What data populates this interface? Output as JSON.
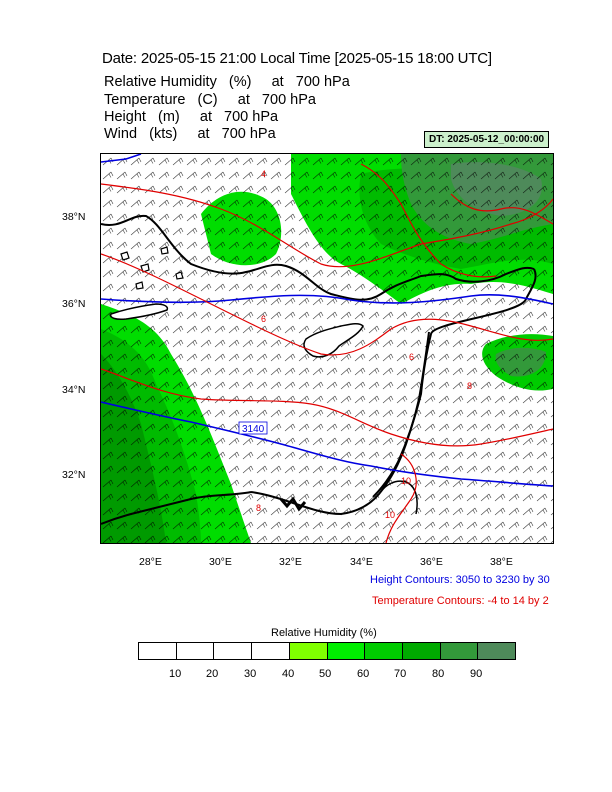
{
  "title": "Date: 2025-05-15  21:00 Local Time [2025-05-15  18:00 UTC]",
  "variables": [
    "Relative Humidity   (%)     at   700 hPa",
    "Temperature   (C)     at   700 hPa",
    "Height   (m)     at   700 hPa",
    "Wind   (kts)     at   700 hPa"
  ],
  "dt_label": "DT: 2025-05-12_00:00:00",
  "map": {
    "lon_range": [
      26.6,
      39.4
    ],
    "lat_range": [
      30.4,
      39.5
    ],
    "lon_ticks": [
      "28°E",
      "30°E",
      "32°E",
      "34°E",
      "36°E",
      "38°E"
    ],
    "lat_ticks": [
      "38°N",
      "36°N",
      "34°N",
      "32°N"
    ],
    "height_contour_labels": [
      "3140"
    ],
    "temperature_contour_labels": [
      "4",
      "6",
      "6",
      "8",
      "8",
      "10",
      "10"
    ],
    "colors": {
      "height_contour": "#0000e0",
      "temperature_contour": "#e00000",
      "coastline": "#000000"
    }
  },
  "height_contours_note": "Height Contours: 3050 to 3230 by 30",
  "temperature_contours_note": "Temperature Contours: -4 to 14 by 2",
  "colorbar": {
    "title": "Relative Humidity  (%)",
    "labels": [
      "10",
      "20",
      "30",
      "40",
      "50",
      "60",
      "70",
      "80",
      "90"
    ],
    "colors": [
      "#ffffff",
      "#ffffff",
      "#ffffff",
      "#ffffff",
      "#80ff00",
      "#00ee00",
      "#00cc00",
      "#00aa00",
      "#33993a",
      "#4e8a5a"
    ]
  }
}
